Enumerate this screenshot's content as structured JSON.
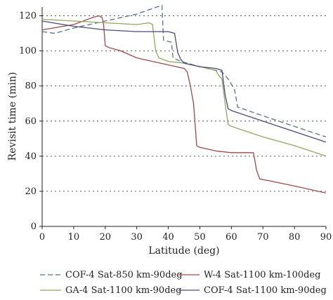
{
  "chart_data": {
    "type": "line",
    "xlabel": "Latitude (deg)",
    "ylabel": "Revisit time (min)",
    "xlim": [
      0,
      90
    ],
    "ylim": [
      0,
      125
    ],
    "xticks": [
      "0",
      "10",
      "20",
      "30",
      "40",
      "50",
      "60",
      "70",
      "80",
      "90"
    ],
    "yticks": [
      "0",
      "20",
      "40",
      "60",
      "80",
      "100",
      "120"
    ],
    "grid": "horizontal dotted",
    "legend_position": "bottom",
    "series": [
      {
        "name": "COF-4 Sat-850 km-90deg",
        "color": "#5a6f8c",
        "dash": "dashed",
        "x": [
          0,
          4,
          10,
          20,
          30,
          38,
          38.5,
          41,
          41.5,
          44,
          50,
          57,
          59,
          61,
          62,
          70,
          80,
          90
        ],
        "y": [
          111,
          110,
          113,
          117,
          121,
          126,
          106,
          105,
          96,
          94,
          91,
          88,
          84,
          78,
          68,
          63,
          57,
          51
        ]
      },
      {
        "name": "W-4 Sat-1100 km-100deg",
        "color": "#a0494a",
        "dash": "solid",
        "x": [
          0,
          10,
          16,
          18,
          19,
          19.5,
          20,
          21,
          25,
          30,
          35,
          40,
          45,
          46,
          47,
          48,
          49,
          50,
          55,
          60,
          65,
          67,
          68,
          69,
          72,
          80,
          90
        ],
        "y": [
          112,
          115,
          119,
          120,
          119,
          115,
          103,
          102,
          100,
          96,
          94,
          92,
          90,
          88,
          80,
          70,
          46,
          45,
          43,
          42,
          42,
          42,
          32,
          27,
          26,
          23,
          19
        ]
      },
      {
        "name": "GA-4 Sat-1100 km-90deg",
        "color": "#8ea860",
        "dash": "solid",
        "x": [
          0,
          10,
          20,
          30,
          34,
          35,
          36,
          37,
          40,
          45,
          50,
          55,
          56,
          57,
          58,
          59,
          60,
          70,
          80,
          90
        ],
        "y": [
          118,
          117,
          116,
          115,
          116,
          115,
          100,
          96,
          94,
          93,
          91,
          89,
          86,
          84,
          70,
          58,
          57,
          51,
          46,
          40
        ]
      },
      {
        "name": "COF-4 Sat-1100 km-90deg",
        "color": "#4a4a7c",
        "dash": "solid",
        "x": [
          0,
          10,
          20,
          30,
          40,
          42,
          43,
          44,
          45,
          50,
          55,
          57,
          58,
          59,
          60,
          70,
          80,
          90
        ],
        "y": [
          117,
          114,
          112,
          111,
          111,
          110,
          99,
          95,
          93,
          91,
          90,
          89,
          75,
          67,
          66,
          60,
          54,
          48
        ]
      }
    ]
  }
}
